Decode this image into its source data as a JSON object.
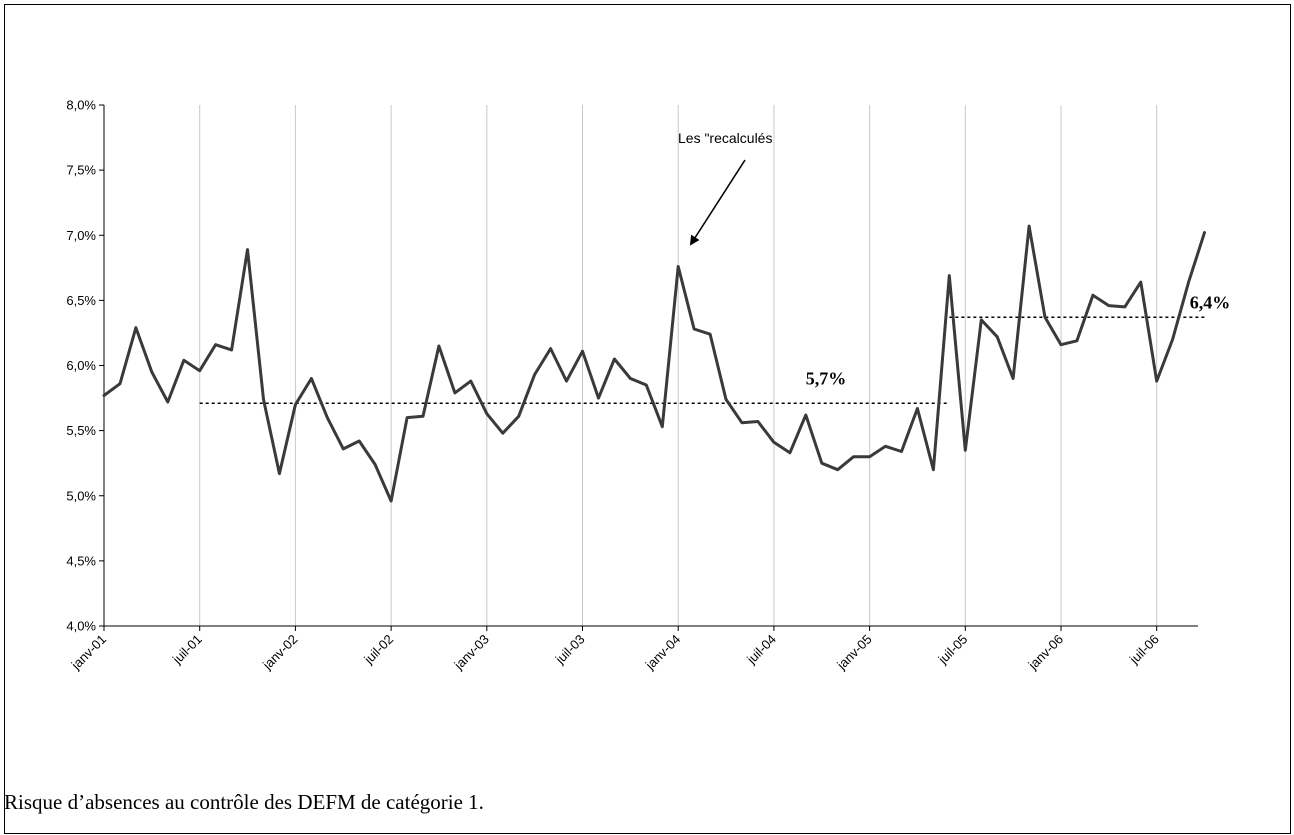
{
  "caption": "Risque d’absences au contrôle des DEFM de catégorie 1.",
  "chart_data": {
    "type": "line",
    "title": "",
    "xlabel": "",
    "ylabel": "",
    "ylim": [
      4.0,
      8.0
    ],
    "y_ticks": [
      "4,0%",
      "4,5%",
      "5,0%",
      "5,5%",
      "6,0%",
      "6,5%",
      "7,0%",
      "7,5%",
      "8,0%"
    ],
    "y_tick_values": [
      4.0,
      4.5,
      5.0,
      5.5,
      6.0,
      6.5,
      7.0,
      7.5,
      8.0
    ],
    "x_ticks": [
      "janv-01",
      "juil-01",
      "janv-02",
      "juil-02",
      "janv-03",
      "juil-03",
      "janv-04",
      "juil-04",
      "janv-05",
      "juil-05",
      "janv-06",
      "juil-06"
    ],
    "x_tick_month_index": [
      0,
      6,
      12,
      18,
      24,
      30,
      36,
      42,
      48,
      54,
      60,
      66
    ],
    "grid": "vertical",
    "line_color": "#3a3a3a",
    "series": [
      {
        "values": [
          5.77,
          5.86,
          6.29,
          5.95,
          5.72,
          6.04,
          5.96,
          6.16,
          6.12,
          6.89,
          5.74,
          5.17,
          5.7,
          5.9,
          5.6,
          5.36,
          5.42,
          5.24,
          4.96,
          5.6,
          5.61,
          6.15,
          5.79,
          5.88,
          5.63,
          5.48,
          5.61,
          5.93,
          6.13,
          5.88,
          6.11,
          5.75,
          6.05,
          5.9,
          5.85,
          5.53,
          6.76,
          6.28,
          6.24,
          5.74,
          5.56,
          5.57,
          5.41,
          5.33,
          5.62,
          5.25,
          5.2,
          5.3,
          5.3,
          5.38,
          5.34,
          5.67,
          5.2,
          6.69,
          5.35,
          6.35,
          6.22,
          5.9,
          7.07,
          6.37,
          6.16,
          6.19,
          6.54,
          6.46,
          6.45,
          6.64,
          5.88,
          6.2,
          6.64,
          7.02
        ]
      }
    ],
    "reference_lines": [
      {
        "value": 5.71,
        "from_index": 6,
        "to_index": 53,
        "label": "5,7%"
      },
      {
        "value": 6.37,
        "from_index": 53,
        "to_index": 69,
        "label": "6,4%"
      }
    ],
    "annotations": [
      {
        "text": "Les \"recalculés",
        "points_to_index": 37
      }
    ]
  }
}
